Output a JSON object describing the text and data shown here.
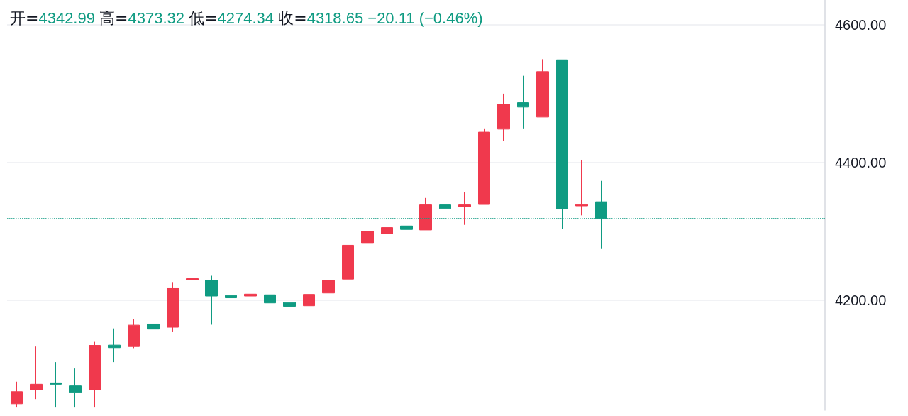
{
  "chart_data": {
    "type": "candlestick",
    "categories": [
      null,
      null,
      null,
      null,
      null,
      null,
      null,
      null,
      null,
      null,
      null,
      null,
      null,
      null,
      null,
      null,
      null,
      null,
      null,
      null,
      null,
      null,
      null,
      null,
      null,
      null,
      null,
      null,
      null,
      null,
      null,
      null,
      null,
      null,
      null,
      null,
      null,
      null,
      null,
      null,
      null,
      null
    ],
    "ohlc": [
      [
        4049.5,
        4081.5,
        4044,
        4067
      ],
      [
        4069.4,
        4132.6,
        4056.3,
        4077.8
      ],
      [
        4079.8,
        4110,
        4044,
        4077.8
      ],
      [
        4075.4,
        4100.7,
        4044,
        4066
      ],
      [
        4069.7,
        4139.4,
        4044,
        4134.3
      ],
      [
        4134.7,
        4158.9,
        4110,
        4131
      ],
      [
        4132.6,
        4173,
        4130.3,
        4163.6
      ],
      [
        4165.3,
        4168,
        4143.1,
        4157.9
      ],
      [
        4160.6,
        4226.3,
        4154.5,
        4217.9
      ],
      [
        4229.6,
        4264.9,
        4206,
        4231.3
      ],
      [
        4229,
        4235.4,
        4164.3,
        4206
      ],
      [
        4206.8,
        4241.4,
        4195,
        4203.4
      ],
      [
        4206,
        4219.5,
        4175.8,
        4208.8
      ],
      [
        4207.8,
        4259.9,
        4192.6,
        4196
      ],
      [
        4196.6,
        4218.5,
        4175.8,
        4191
      ],
      [
        4191.9,
        4220.5,
        4170.7,
        4208.4
      ],
      [
        4210.4,
        4238,
        4182.5,
        4228.6
      ],
      [
        4230.6,
        4285.2,
        4204.4,
        4279.8
      ],
      [
        4282.5,
        4353.2,
        4258.3,
        4300.3
      ],
      [
        4296.3,
        4349.8,
        4285.9,
        4305.4
      ],
      [
        4307.8,
        4334.6,
        4271.7,
        4302.7
      ],
      [
        4302,
        4348.5,
        4302,
        4338.4
      ],
      [
        4338.4,
        4374.7,
        4308.8,
        4333
      ],
      [
        4335.7,
        4356.6,
        4309.4,
        4338.4
      ],
      [
        4339,
        4448.5,
        4339,
        4444.1
      ],
      [
        4448.5,
        4500,
        4431,
        4484.8
      ],
      [
        4486.9,
        4526,
        4448.5,
        4480.5
      ],
      [
        4466,
        4550,
        4466,
        4532
      ],
      [
        4549.1,
        4549.1,
        4303.7,
        4332.3
      ],
      [
        4337,
        4404,
        4323.2,
        4338.8
      ],
      [
        4342.99,
        4373.32,
        4274.34,
        4318.65
      ],
      null,
      null,
      null,
      null,
      null,
      null,
      null,
      null,
      null,
      null,
      null
    ],
    "colors": [
      "#f0394d",
      "#f0394d",
      "#0f9b82",
      "#0f9b82",
      "#f0394d",
      "#0f9b82",
      "#f0394d",
      "#0f9b82",
      "#f0394d",
      "#f0394d",
      "#0f9b82",
      "#0f9b82",
      "#f0394d",
      "#0f9b82",
      "#0f9b82",
      "#f0394d",
      "#f0394d",
      "#f0394d",
      "#f0394d",
      "#f0394d",
      "#0f9b82",
      "#f0394d",
      "#0f9b82",
      "#f0394d",
      "#f0394d",
      "#f0394d",
      "#0f9b82",
      "#f0394d",
      "#0f9b82",
      "#f0394d",
      "#0f9b82",
      null,
      null,
      null,
      null,
      null,
      null,
      null,
      null,
      null,
      null,
      null
    ],
    "ylim": [
      4040,
      4636
    ],
    "yticks": [
      {
        "value": 4200,
        "label": "4200.00"
      },
      {
        "value": 4400,
        "label": "4400.00"
      },
      {
        "value": 4600,
        "label": "4600.00"
      }
    ],
    "grid": "y",
    "ref_lines": [
      {
        "axis": "y",
        "value": 4318.65,
        "label": null,
        "color": "#0f9b82",
        "line_style": "dotted"
      }
    ],
    "annotations": [
      "开=4342.99 高=4373.32 低=4274.34 收=4318.65 −20.11 (−0.46%)"
    ]
  }
}
